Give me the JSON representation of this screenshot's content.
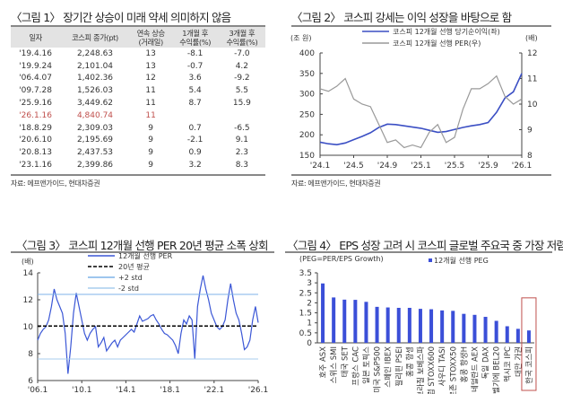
{
  "fig1": {
    "title": "〈그림 1〉 장기간 상승이 미래 약세 의미하지 않음",
    "headers": [
      "일자",
      "코스피 종가(pt)",
      "연속 상승\n(거래일)",
      "1개월 후\n수익률(%)",
      "3개월 후\n수익률(%)"
    ],
    "rows": [
      [
        "'19.4.16",
        "2,248.63",
        "13",
        "-8.1",
        "-7.0"
      ],
      [
        "'19.9.24",
        "2,101.04",
        "13",
        "-0.7",
        "4.2"
      ],
      [
        "'06.4.07",
        "1,402.36",
        "12",
        "3.6",
        "-9.2"
      ],
      [
        "'09.7.28",
        "1,526.03",
        "11",
        "5.4",
        "5.5"
      ],
      [
        "'25.9.16",
        "3,449.62",
        "11",
        "8.7",
        "15.9"
      ],
      [
        "'26.1.16",
        "4,840.74",
        "11",
        "",
        ""
      ],
      [
        "'18.8.29",
        "2,309.03",
        "9",
        "0.7",
        "-6.5"
      ],
      [
        "'20.6.10",
        "2,195.69",
        "9",
        "-2.1",
        "9.1"
      ],
      [
        "'20.8.13",
        "2,437.53",
        "9",
        "0.9",
        "2.3"
      ],
      [
        "'23.1.16",
        "2,399.86",
        "9",
        "3.2",
        "8.3"
      ]
    ],
    "highlight_row": 5,
    "highlight_color": "#c0504d",
    "source": "자료: 에프앤가이드, 현대차증권"
  },
  "fig2": {
    "title": "〈그림 2〉 코스피 강세는 이익 성장을 바탕으로 함",
    "source": "자료: 에프앤가이드, 현대차증권"
  },
  "fig3": {
    "title": "〈그림 3〉 코스피 12개월 선행 PER 20년 평균 소폭 상회"
  },
  "fig4": {
    "title": "〈그림 4〉 EPS 성장 고려 시 코스피 글로벌 주요국 중 가장 저렴"
  },
  "chart_data": [
    {
      "type": "line",
      "left_unit": "(조 원)",
      "right_unit": "(배)",
      "x": [
        "'24.1",
        "'24.2",
        "'24.3",
        "'24.4",
        "'24.5",
        "'24.6",
        "'24.7",
        "'24.8",
        "'24.9",
        "'24.10",
        "'24.11",
        "'24.12",
        "'25.1",
        "'25.2",
        "'25.3",
        "'25.4",
        "'25.5",
        "'25.6",
        "'25.7",
        "'25.8",
        "'25.9",
        "'25.10",
        "'25.11",
        "'25.12",
        "'26.1"
      ],
      "xticks": [
        "'24.1",
        "'24.5",
        "'24.9",
        "'25.1",
        "'25.5",
        "'25.9",
        "'26.1"
      ],
      "ylim_left": [
        150,
        400
      ],
      "yticks_left": [
        150,
        200,
        250,
        300,
        350,
        400
      ],
      "ylim_right": [
        8,
        12
      ],
      "yticks_right": [
        8,
        9,
        10,
        11,
        12
      ],
      "series": [
        {
          "name": "코스피 12개월 선행 당기순이익(좌)",
          "axis": "left",
          "color": "#3b4fc4",
          "values": [
            182,
            178,
            176,
            180,
            188,
            196,
            205,
            218,
            226,
            225,
            222,
            219,
            216,
            211,
            206,
            208,
            213,
            218,
            222,
            225,
            230,
            255,
            290,
            305,
            350
          ]
        },
        {
          "name": "코스피 12개월 선행 PER(우)",
          "axis": "right",
          "color": "#999999",
          "values": [
            10.6,
            10.5,
            10.7,
            11.0,
            10.2,
            10.0,
            9.9,
            9.2,
            8.5,
            8.6,
            8.3,
            8.4,
            8.3,
            8.9,
            9.2,
            8.5,
            8.7,
            9.8,
            10.6,
            10.6,
            10.8,
            11.1,
            10.3,
            10.0,
            10.2
          ]
        }
      ]
    },
    {
      "type": "line",
      "yunit": "(배)",
      "ylim": [
        6,
        14
      ],
      "yticks": [
        6,
        8,
        10,
        12,
        14
      ],
      "xticks": [
        "'06.1",
        "'10.1",
        "'14.1",
        "'18.1",
        "'22.1",
        "'26.1"
      ],
      "x_start": 2006,
      "x_end": 2026,
      "series": [
        {
          "name": "12개월 선행 PER",
          "color": "#3b57d6",
          "values": [
            9.0,
            9.5,
            9.8,
            10.0,
            10.5,
            11.5,
            12.8,
            12.0,
            11.5,
            11.0,
            9.5,
            6.5,
            8.5,
            11.0,
            12.5,
            11.5,
            10.5,
            9.5,
            9.0,
            9.5,
            9.8,
            10.0,
            8.5,
            8.8,
            9.2,
            8.2,
            8.5,
            8.8,
            9.0,
            8.5,
            9.0,
            9.2,
            9.4,
            9.6,
            9.8,
            9.6,
            10.2,
            10.8,
            10.4,
            10.5,
            10.6,
            10.8,
            10.9,
            10.5,
            10.2,
            9.8,
            9.5,
            9.4,
            9.2,
            9.0,
            8.6,
            8.0,
            9.5,
            10.5,
            10.2,
            10.8,
            10.5,
            7.6,
            11.5,
            12.8,
            13.8,
            12.8,
            12.0,
            11.0,
            10.5,
            10.0,
            9.8,
            10.0,
            10.5,
            12.0,
            13.2,
            12.0,
            11.0,
            10.5,
            9.5,
            8.3,
            8.5,
            9.0,
            10.5,
            11.5,
            10.3
          ]
        },
        {
          "name": "20년 평균",
          "value": 10.05,
          "color": "#000000",
          "style": "dashed"
        },
        {
          "name": "+2 std",
          "value": 12.4,
          "color": "#7fb3e8"
        },
        {
          "name": "-2 std",
          "value": 7.6,
          "color": "#a8cdee"
        }
      ]
    },
    {
      "type": "bar",
      "note": "(PEG=PER/EPS Growth)",
      "legend": "12개월 선행 PEG",
      "color": "#3b4fd8",
      "ylim": [
        0,
        3.5
      ],
      "yticks": [
        "0",
        "0.5",
        "1",
        "1.5",
        "2",
        "2.5",
        "3",
        "3.5"
      ],
      "categories": [
        "호주 ASX",
        "스위스 SMI",
        "태국 SET",
        "프랑스 CAC",
        "일본 토픽스",
        "미국 S&P500",
        "스페인 IBEX",
        "필리핀 PSEI",
        "홍콩 항셍",
        "브라질 보베스파",
        "유럽 STOXX600",
        "사우디 TASI",
        "유로존 STOXX50",
        "홍콩 항생H",
        "네덜란드 AEX",
        "독일 DAX",
        "벨기에 BEL20",
        "멕시코 IPC",
        "대만 가권",
        "한국 코스피"
      ],
      "values": [
        2.97,
        2.27,
        2.16,
        2.15,
        2.05,
        1.8,
        1.77,
        1.75,
        1.75,
        1.7,
        1.68,
        1.62,
        1.6,
        1.45,
        1.4,
        1.3,
        1.1,
        0.83,
        0.7,
        0.62
      ],
      "highlight": "한국 코스피",
      "highlight_color": "#c0504d"
    }
  ]
}
